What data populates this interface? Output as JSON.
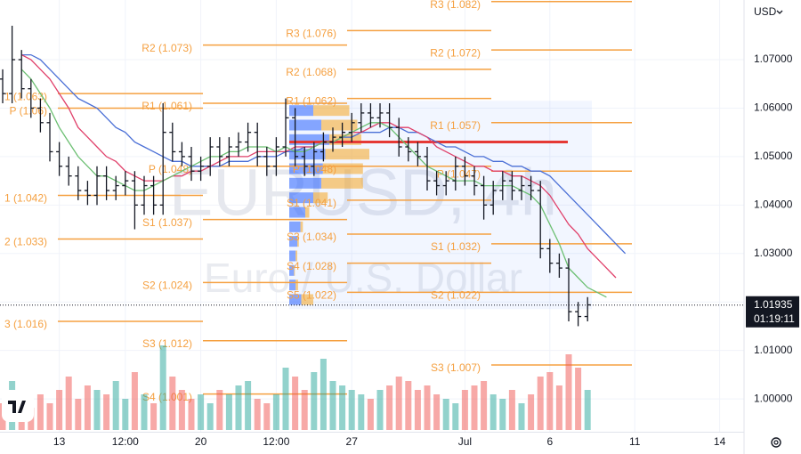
{
  "chart_data": {
    "type": "ohlc",
    "watermark": {
      "symbol": "EURUSD, 4h",
      "description": "Euro / U.S. Dollar"
    },
    "currency": "USD",
    "categories": [
      null,
      null,
      null,
      null,
      null,
      null,
      "13",
      null,
      null,
      null,
      null,
      null,
      null,
      "12:00",
      null,
      null,
      null,
      null,
      null,
      null,
      null,
      "20",
      null,
      null,
      null,
      null,
      null,
      null,
      null,
      "12:00",
      null,
      null,
      null,
      null,
      null,
      null,
      null,
      "27",
      null,
      null,
      null,
      null,
      null,
      null,
      null,
      null,
      null,
      null,
      null,
      "Jul",
      null,
      null,
      null,
      null,
      null,
      null,
      null,
      null,
      "6",
      null,
      null,
      null,
      null,
      null,
      null,
      null,
      null,
      "11",
      null,
      null,
      null,
      null,
      null,
      null,
      null,
      null,
      "14",
      null,
      null
    ],
    "open": [
      1.066,
      1.063,
      1.07,
      1.064,
      1.06,
      1.057,
      1.051,
      1.048,
      1.046,
      1.043,
      1.042,
      1.046,
      1.043,
      1.044,
      1.045,
      1.04,
      1.044,
      1.04,
      1.055,
      1.051,
      1.05,
      1.047,
      1.048,
      1.052,
      1.05,
      1.052,
      1.053,
      1.055,
      1.05,
      1.048,
      1.052,
      1.058,
      1.05,
      1.048,
      1.051,
      1.053,
      1.054,
      1.055,
      1.057,
      1.059,
      1.058,
      1.059,
      1.056,
      1.052,
      1.051,
      1.05,
      1.045,
      1.044,
      1.045,
      1.048,
      1.046,
      1.044,
      1.04,
      1.043,
      1.045,
      1.043,
      1.044,
      1.043,
      1.031,
      1.028,
      1.027,
      1.018,
      1.017,
      null,
      null,
      null,
      null,
      null,
      null,
      null,
      null,
      null,
      null,
      null,
      null,
      null,
      null,
      null,
      null
    ],
    "high": [
      1.068,
      1.077,
      1.072,
      1.066,
      1.062,
      1.059,
      1.053,
      1.05,
      1.048,
      1.045,
      1.048,
      1.048,
      1.046,
      1.047,
      1.047,
      1.046,
      1.046,
      1.061,
      1.057,
      1.053,
      1.052,
      1.05,
      1.054,
      1.054,
      1.054,
      1.055,
      1.057,
      1.057,
      1.052,
      1.054,
      1.062,
      1.06,
      1.052,
      1.053,
      1.055,
      1.056,
      1.057,
      1.059,
      1.061,
      1.061,
      1.061,
      1.061,
      1.058,
      1.054,
      1.053,
      1.052,
      1.047,
      1.047,
      1.05,
      1.05,
      1.048,
      1.046,
      1.045,
      1.047,
      1.047,
      1.046,
      1.046,
      1.045,
      1.033,
      1.03,
      1.029,
      1.02,
      1.021,
      null,
      null,
      null,
      null,
      null,
      null,
      null,
      null,
      null,
      null,
      null,
      null,
      null,
      null,
      null,
      null
    ],
    "low": [
      1.061,
      1.061,
      1.062,
      1.058,
      1.055,
      1.049,
      1.046,
      1.044,
      1.041,
      1.04,
      1.04,
      1.041,
      1.041,
      1.042,
      1.035,
      1.038,
      1.038,
      1.038,
      1.049,
      1.048,
      1.045,
      1.045,
      1.046,
      1.048,
      1.048,
      1.05,
      1.051,
      1.048,
      1.046,
      1.046,
      1.05,
      1.048,
      1.046,
      1.046,
      1.049,
      1.051,
      1.052,
      1.053,
      1.055,
      1.056,
      1.056,
      1.054,
      1.05,
      1.049,
      1.048,
      1.043,
      1.042,
      1.042,
      1.043,
      1.044,
      1.042,
      1.037,
      1.038,
      1.041,
      1.041,
      1.041,
      1.041,
      1.029,
      1.026,
      1.025,
      1.016,
      1.015,
      1.016,
      null,
      null,
      null,
      null,
      null,
      null,
      null,
      null,
      null,
      null,
      null,
      null,
      null,
      null,
      null,
      null
    ],
    "close": [
      1.063,
      1.07,
      1.064,
      1.06,
      1.057,
      1.051,
      1.048,
      1.046,
      1.043,
      1.042,
      1.046,
      1.043,
      1.044,
      1.045,
      1.04,
      1.044,
      1.04,
      1.055,
      1.051,
      1.05,
      1.047,
      1.048,
      1.052,
      1.05,
      1.052,
      1.053,
      1.055,
      1.05,
      1.048,
      1.052,
      1.058,
      1.05,
      1.048,
      1.051,
      1.053,
      1.054,
      1.055,
      1.057,
      1.059,
      1.058,
      1.059,
      1.056,
      1.052,
      1.051,
      1.05,
      1.045,
      1.044,
      1.045,
      1.048,
      1.046,
      1.044,
      1.04,
      1.043,
      1.045,
      1.043,
      1.044,
      1.043,
      1.031,
      1.028,
      1.027,
      1.018,
      1.017,
      1.0194,
      null,
      null,
      null,
      null,
      null,
      null,
      null,
      null,
      null,
      null,
      null,
      null,
      null,
      null,
      null,
      null
    ],
    "volume": [
      30,
      55,
      35,
      25,
      40,
      30,
      45,
      60,
      35,
      50,
      45,
      40,
      55,
      35,
      65,
      40,
      30,
      95,
      60,
      45,
      35,
      40,
      30,
      45,
      40,
      50,
      55,
      35,
      30,
      40,
      70,
      60,
      45,
      65,
      80,
      55,
      50,
      45,
      40,
      35,
      45,
      50,
      60,
      55,
      45,
      50,
      40,
      35,
      30,
      45,
      50,
      55,
      40,
      35,
      45,
      30,
      40,
      60,
      65,
      50,
      85,
      70,
      45,
      null,
      null,
      null,
      null,
      null,
      null,
      null,
      null,
      null,
      null,
      null,
      null,
      null,
      null,
      null,
      null
    ],
    "moving_averages": [
      {
        "color": "#4a6fd6",
        "values": [
          null,
          null,
          1.071,
          1.071,
          1.07,
          1.068,
          1.066,
          1.064,
          1.062,
          1.061,
          1.06,
          1.058,
          1.056,
          1.055,
          1.053,
          1.052,
          1.051,
          1.05,
          1.049,
          1.049,
          1.048,
          1.048,
          1.048,
          1.048,
          1.049,
          1.049,
          1.049,
          1.05,
          1.05,
          1.05,
          1.051,
          1.051,
          1.052,
          1.052,
          1.053,
          1.053,
          1.054,
          1.054,
          1.055,
          1.055,
          1.055,
          1.056,
          1.056,
          1.055,
          1.055,
          1.054,
          1.053,
          1.052,
          1.052,
          1.051,
          1.05,
          1.05,
          1.049,
          1.049,
          1.048,
          1.048,
          1.047,
          1.047,
          1.046,
          1.044,
          1.042,
          1.04,
          1.038,
          1.036,
          1.034,
          1.032,
          1.03,
          null,
          null,
          null,
          null,
          null,
          null,
          null,
          null,
          null,
          null,
          null,
          null
        ]
      },
      {
        "color": "#e0406a",
        "values": [
          null,
          null,
          1.071,
          1.07,
          1.068,
          1.066,
          1.063,
          1.06,
          1.056,
          1.054,
          1.052,
          1.05,
          1.049,
          1.047,
          1.046,
          1.045,
          1.045,
          1.045,
          1.046,
          1.046,
          1.047,
          1.047,
          1.048,
          1.049,
          1.05,
          1.05,
          1.05,
          1.051,
          1.051,
          1.051,
          1.051,
          1.052,
          1.052,
          1.052,
          1.053,
          1.053,
          1.054,
          1.055,
          1.055,
          1.056,
          1.057,
          1.057,
          1.056,
          1.056,
          1.055,
          1.054,
          1.052,
          1.051,
          1.05,
          1.049,
          1.048,
          1.048,
          1.047,
          1.047,
          1.046,
          1.046,
          1.045,
          1.044,
          1.042,
          1.039,
          1.036,
          1.034,
          1.031,
          1.029,
          1.027,
          1.025,
          null,
          null,
          null,
          null,
          null,
          null,
          null,
          null,
          null,
          null,
          null,
          null,
          null
        ]
      },
      {
        "color": "#6cbf72",
        "values": [
          null,
          null,
          1.068,
          1.066,
          1.063,
          1.06,
          1.056,
          1.053,
          1.05,
          1.048,
          1.046,
          1.046,
          1.045,
          1.044,
          1.043,
          1.043,
          1.044,
          1.045,
          1.046,
          1.047,
          1.048,
          1.049,
          1.05,
          1.05,
          1.051,
          1.051,
          1.052,
          1.052,
          1.052,
          1.051,
          1.052,
          1.051,
          1.051,
          1.052,
          1.053,
          1.053,
          1.054,
          1.055,
          1.056,
          1.057,
          1.057,
          1.056,
          1.054,
          1.052,
          1.05,
          1.048,
          1.047,
          1.046,
          1.045,
          1.045,
          1.045,
          1.044,
          1.044,
          1.044,
          1.044,
          1.043,
          1.042,
          1.04,
          1.036,
          1.032,
          1.027,
          1.025,
          1.023,
          1.022,
          1.021,
          null,
          null,
          null,
          null,
          null,
          null,
          null,
          null,
          null,
          null,
          null,
          null,
          null,
          null
        ]
      }
    ],
    "ylim": [
      0.99322,
      1.08231
    ],
    "yticks": [
      {
        "value": 1.0,
        "label": "1.00000"
      },
      {
        "value": 1.01,
        "label": "1.01000"
      },
      {
        "value": 1.02,
        "label": "1.02000"
      },
      {
        "value": 1.03,
        "label": "1.03000"
      },
      {
        "value": 1.04,
        "label": "1.04000"
      },
      {
        "value": 1.05,
        "label": "1.05000"
      },
      {
        "value": 1.06,
        "label": "1.06000"
      },
      {
        "value": 1.07,
        "label": "1.07000"
      }
    ],
    "grid": true,
    "last_price": 1.01935,
    "countdown": "01:19:11",
    "pivot_color": "#f5a040",
    "pivots": [
      {
        "levels": [
          {
            "label": "1 (1.063)",
            "value": 1.063
          },
          {
            "label": "P (1.06)",
            "value": 1.06
          },
          {
            "label": "1 (1.042)",
            "value": 1.042
          },
          {
            "label": "2 (1.033)",
            "value": 1.033
          },
          {
            "label": "3 (1.016)",
            "value": 1.016
          }
        ]
      },
      {
        "levels": [
          {
            "label": "R2 (1.073)",
            "value": 1.073
          },
          {
            "label": "R1 (1.061)",
            "value": 1.061
          },
          {
            "label": "P (1.048)",
            "value": 1.048
          },
          {
            "label": "S1 (1.037)",
            "value": 1.037
          },
          {
            "label": "S2 (1.024)",
            "value": 1.024
          },
          {
            "label": "S3 (1.012)",
            "value": 1.012
          },
          {
            "label": "S4 (1.001)",
            "value": 1.001
          }
        ]
      },
      {
        "levels": [
          {
            "label": "R3 (1.076)",
            "value": 1.076
          },
          {
            "label": "R2 (1.068)",
            "value": 1.068
          },
          {
            "label": "R1 (1.062)",
            "value": 1.062
          },
          {
            "label": "P (1.048)",
            "value": 1.048
          },
          {
            "label": "S1 (1.041)",
            "value": 1.041
          },
          {
            "label": "S3 (1.034)",
            "value": 1.034
          },
          {
            "label": "S4 (1.028)",
            "value": 1.028
          },
          {
            "label": "S5 (1.022)",
            "value": 1.022
          }
        ]
      },
      {
        "levels": [
          {
            "label": "R3 (1.082)",
            "value": 1.082
          },
          {
            "label": "R2 (1.072)",
            "value": 1.072
          },
          {
            "label": "R1 (1.057)",
            "value": 1.057
          },
          {
            "label": "P (1.047)",
            "value": 1.047
          },
          {
            "label": "S1 (1.032)",
            "value": 1.032
          },
          {
            "label": "S2 (1.022)",
            "value": 1.022
          },
          {
            "label": "S3 (1.007)",
            "value": 1.007
          }
        ]
      }
    ],
    "volume_profile": {
      "value_area": [
        1.0185,
        1.0615
      ],
      "poc": 1.053,
      "rows": [
        {
          "price": 1.0595,
          "up": 30,
          "down": 45
        },
        {
          "price": 1.0565,
          "up": 40,
          "down": 45
        },
        {
          "price": 1.0535,
          "up": 50,
          "down": 40
        },
        {
          "price": 1.0505,
          "up": 45,
          "down": 55
        },
        {
          "price": 1.0475,
          "up": 42,
          "down": 50
        },
        {
          "price": 1.0445,
          "up": 40,
          "down": 52
        },
        {
          "price": 1.0415,
          "up": 30,
          "down": 18
        },
        {
          "price": 1.0385,
          "up": 20,
          "down": 5
        },
        {
          "price": 1.0355,
          "up": 14,
          "down": 3
        },
        {
          "price": 1.0325,
          "up": 10,
          "down": 2
        },
        {
          "price": 1.0295,
          "up": 8,
          "down": 2
        },
        {
          "price": 1.0265,
          "up": 6,
          "down": 1
        },
        {
          "price": 1.0235,
          "up": 8,
          "down": 3
        },
        {
          "price": 1.0205,
          "up": 15,
          "down": 15
        }
      ]
    }
  }
}
